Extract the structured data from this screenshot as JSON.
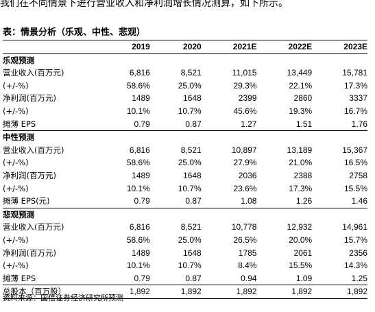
{
  "intro": "我们在不同情景下进行营业收入和净利润增长情况测算，如下所示。",
  "title": "表：情景分析（乐观、中性、悲观）",
  "table": {
    "columns": [
      "2019",
      "2020",
      "2021E",
      "2022E",
      "2023E"
    ],
    "sections": [
      {
        "title": "乐观预测",
        "rows": [
          {
            "label": "营业收入(百万元)",
            "values": [
              "6,816",
              "8,521",
              "11,015",
              "13,449",
              "15,781"
            ]
          },
          {
            "label": "(+/-%)",
            "values": [
              "58.6%",
              "25.0%",
              "29.3%",
              "22.1%",
              "17.3%"
            ]
          },
          {
            "label": "净利润(百万元)",
            "values": [
              "1489",
              "1648",
              "2399",
              "2860",
              "3337"
            ]
          },
          {
            "label": "(+/-%)",
            "values": [
              "10.1%",
              "10.7%",
              "45.6%",
              "19.3%",
              "16.7%"
            ]
          },
          {
            "label": "摊薄 EPS",
            "values": [
              "0.79",
              "0.87",
              "1.27",
              "1.51",
              "1.76"
            ]
          }
        ]
      },
      {
        "title": "中性预测",
        "rows": [
          {
            "label": "营业收入(百万元)",
            "values": [
              "6,816",
              "8,521",
              "10,897",
              "13,189",
              "15,367"
            ]
          },
          {
            "label": "(+/-%)",
            "values": [
              "58.6%",
              "25.0%",
              "27.9%",
              "21.0%",
              "16.5%"
            ]
          },
          {
            "label": "净利润(百万元)",
            "values": [
              "1489",
              "1648",
              "2036",
              "2388",
              "2758"
            ]
          },
          {
            "label": "(+/-%)",
            "values": [
              "10.1%",
              "10.7%",
              "23.6%",
              "17.3%",
              "15.5%"
            ]
          },
          {
            "label": "摊薄 EPS(元)",
            "values": [
              "0.79",
              "0.87",
              "1.08",
              "1.26",
              "1.46"
            ]
          }
        ]
      },
      {
        "title": "悲观预测",
        "rows": [
          {
            "label": "营业收入(百万元)",
            "values": [
              "6,816",
              "8,521",
              "10,778",
              "12,932",
              "14,961"
            ]
          },
          {
            "label": "(+/-%)",
            "values": [
              "58.6%",
              "25.0%",
              "26.5%",
              "20.0%",
              "15.7%"
            ]
          },
          {
            "label": "净利润(百万元)",
            "values": [
              "1489",
              "1648",
              "1785",
              "2061",
              "2356"
            ]
          },
          {
            "label": "(+/-%)",
            "values": [
              "10.1%",
              "10.7%",
              "8.4%",
              "15.5%",
              "14.3%"
            ]
          },
          {
            "label": "摊薄 EPS",
            "values": [
              "0.79",
              "0.87",
              "0.94",
              "1.09",
              "1.25"
            ]
          }
        ]
      }
    ],
    "total": {
      "label": "总股本（百万股）",
      "values": [
        "1,892",
        "1,892",
        "1,892",
        "1,892",
        "1,892"
      ]
    }
  },
  "source": "资料来源：国信证券经济研究所预测"
}
